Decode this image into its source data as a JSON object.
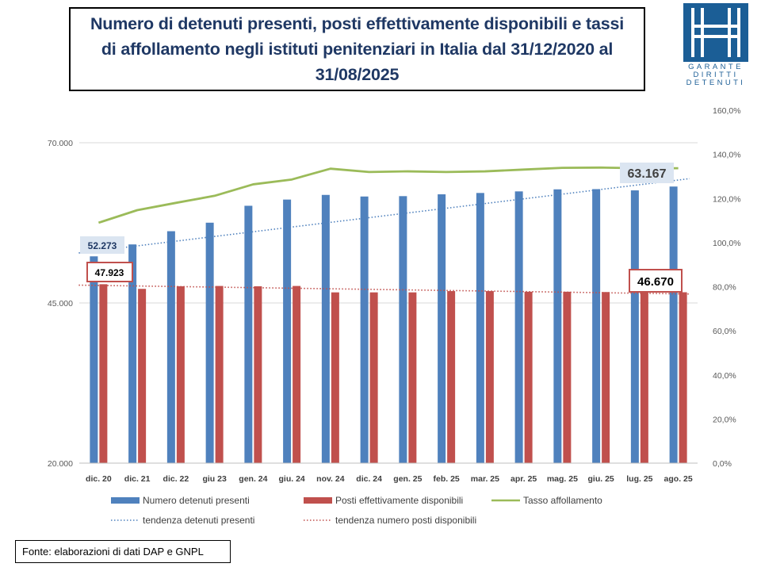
{
  "title": "Numero di detenuti presenti, posti effettivamente disponibili e tassi di affollamento negli istituti penitenziari in Italia dal 31/12/2020 al 31/08/2025",
  "logo": {
    "line1": "GARANTE",
    "line2": "DIRITTI",
    "line3": "DETENUTI",
    "color": "#1b5e96"
  },
  "source": "Fonte: elaborazioni di dati DAP e GNPL",
  "chart_data": {
    "type": "bar",
    "categories": [
      "dic. 20",
      "dic. 21",
      "dic. 22",
      "giu 23",
      "gen. 24",
      "giu. 24",
      "nov. 24",
      "dic. 24",
      "gen. 25",
      "feb. 25",
      "mar. 25",
      "apr. 25",
      "mag. 25",
      "giu. 25",
      "lug. 25",
      "ago. 25"
    ],
    "left_axis": {
      "ylim": [
        20000,
        70000
      ],
      "ticks": [
        "20.000",
        "45.000",
        "70.000"
      ],
      "tick_values": [
        20000,
        45000,
        70000
      ]
    },
    "right_axis": {
      "ylim": [
        0,
        160
      ],
      "ticks": [
        "0,0%",
        "20,0%",
        "40,0%",
        "60,0%",
        "80,0%",
        "100,0%",
        "120,0%",
        "140,0%",
        "160,0%"
      ],
      "tick_values": [
        0,
        20,
        40,
        60,
        80,
        100,
        120,
        140,
        160
      ]
    },
    "series": [
      {
        "name": "Numero detenuti presenti",
        "type": "bar",
        "axis": "left",
        "color": "#4f81bd",
        "values": [
          52273,
          54134,
          56196,
          57525,
          60166,
          61133,
          61861,
          61612,
          61670,
          61953,
          62162,
          62409,
          62728,
          62761,
          62568,
          63167
        ]
      },
      {
        "name": "Posti effettivamente disponibili",
        "type": "bar",
        "axis": "left",
        "color": "#c0504d",
        "values": [
          47923,
          47200,
          47600,
          47650,
          47600,
          47650,
          46650,
          46650,
          46650,
          46850,
          46850,
          46750,
          46750,
          46700,
          46650,
          46670
        ]
      },
      {
        "name": "Tasso affollamento",
        "type": "line",
        "axis": "right",
        "color": "#9bbb59",
        "values": [
          109,
          114.7,
          118,
          121.2,
          126.4,
          128.6,
          133.5,
          132,
          132.3,
          132,
          132.3,
          133.1,
          133.9,
          134,
          133.7,
          133.7
        ]
      },
      {
        "name": "tendenza detenuti presenti",
        "type": "trend",
        "axis": "left",
        "color": "#4f81bd",
        "from": 52800,
        "to": 64400
      },
      {
        "name": "tendenza numero posti disponibili",
        "type": "trend",
        "axis": "left",
        "color": "#c0504d",
        "from": 47780,
        "to": 46400
      }
    ],
    "data_labels": [
      {
        "series": "Numero detenuti presenti",
        "category": "dic. 20",
        "text": "52.273"
      },
      {
        "series": "Posti effettivamente disponibili",
        "category": "dic. 20",
        "text": "47.923"
      },
      {
        "series": "Posti effettivamente disponibili",
        "category": "ago. 25",
        "text": "46.670"
      },
      {
        "series": "Numero detenuti presenti",
        "category": "ago. 25",
        "text": "63.167"
      }
    ],
    "legend_position": "bottom",
    "grid": true
  }
}
